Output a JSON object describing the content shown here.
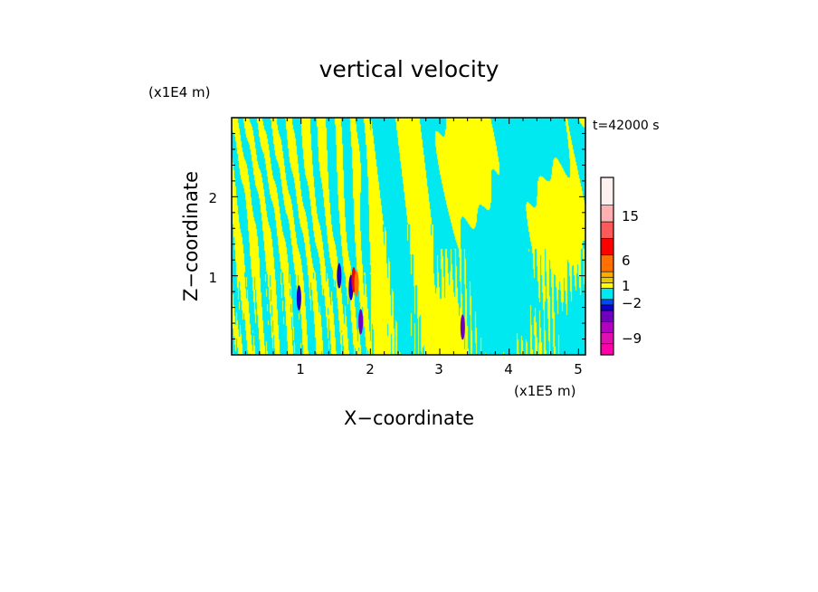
{
  "chart_data": {
    "type": "heatmap",
    "title": "vertical velocity",
    "xlabel": "X−coordinate",
    "ylabel": "Z−coordinate",
    "x_unit_label": "(x1E5 m)",
    "y_unit_label": "(x1E4 m)",
    "time_label": "t=42000 s",
    "xlim": [
      0,
      5.1
    ],
    "ylim": [
      0,
      3.0
    ],
    "x_ticks": [
      "1",
      "2",
      "3",
      "4",
      "5"
    ],
    "y_ticks": [
      "1",
      "2"
    ],
    "x_tick_values": [
      1,
      2,
      3,
      4,
      5
    ],
    "y_tick_values": [
      1,
      2
    ],
    "dominant_colors": {
      "positive_weak": "#ffff00",
      "negative_weak": "#00e8f0"
    },
    "colorbar": {
      "labels": [
        "15",
        "6",
        "1",
        "−2",
        "−9"
      ],
      "label_values": [
        15,
        6,
        1,
        -2,
        -9
      ],
      "bands": [
        {
          "color": "#ff00aa",
          "lo": -12,
          "hi": -10
        },
        {
          "color": "#e010b0",
          "lo": -10,
          "hi": -8
        },
        {
          "color": "#b000c0",
          "lo": -8,
          "hi": -6
        },
        {
          "color": "#7000c0",
          "lo": -6,
          "hi": -4
        },
        {
          "color": "#1000c8",
          "lo": -4,
          "hi": -3
        },
        {
          "color": "#0048ff",
          "lo": -3,
          "hi": -2
        },
        {
          "color": "#00e8f0",
          "lo": -2,
          "hi": 0
        },
        {
          "color": "#ffff00",
          "lo": 0,
          "hi": 1
        },
        {
          "color": "#e8c800",
          "lo": 1,
          "hi": 2
        },
        {
          "color": "#ffaa00",
          "lo": 2,
          "hi": 3
        },
        {
          "color": "#ff7000",
          "lo": 3,
          "hi": 6
        },
        {
          "color": "#ff0000",
          "lo": 6,
          "hi": 9
        },
        {
          "color": "#ff5a5a",
          "lo": 9,
          "hi": 12
        },
        {
          "color": "#ffb0b0",
          "lo": 12,
          "hi": 15
        },
        {
          "color": "#fff0f0",
          "lo": 15,
          "hi": 20
        }
      ]
    }
  }
}
